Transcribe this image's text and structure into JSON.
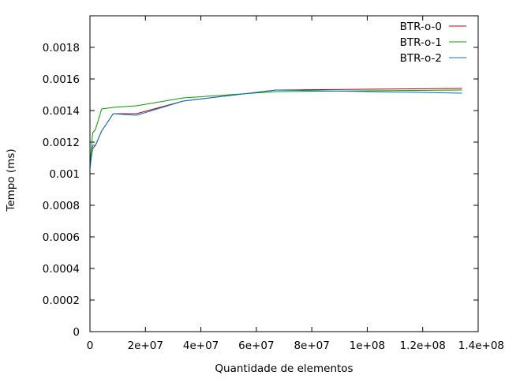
{
  "chart_data": {
    "type": "line",
    "title": "",
    "xlabel": "Quantidade de elementos",
    "ylabel": "Tempo (ms)",
    "xlim": [
      0,
      140000000
    ],
    "ylim": [
      0,
      0.002
    ],
    "grid": false,
    "legend_position": "top-right",
    "x_ticks": [
      {
        "value": 0,
        "label": "0"
      },
      {
        "value": 20000000,
        "label": "2e+07"
      },
      {
        "value": 40000000,
        "label": "4e+07"
      },
      {
        "value": 60000000,
        "label": "6e+07"
      },
      {
        "value": 80000000,
        "label": "8e+07"
      },
      {
        "value": 100000000,
        "label": "1e+08"
      },
      {
        "value": 120000000,
        "label": "1.2e+08"
      },
      {
        "value": 140000000,
        "label": "1.4e+08"
      }
    ],
    "y_ticks": [
      {
        "value": 0,
        "label": "0"
      },
      {
        "value": 0.0002,
        "label": "0.0002"
      },
      {
        "value": 0.0004,
        "label": "0.0004"
      },
      {
        "value": 0.0006,
        "label": "0.0006"
      },
      {
        "value": 0.0008,
        "label": "0.0008"
      },
      {
        "value": 0.001,
        "label": "0.001"
      },
      {
        "value": 0.0012,
        "label": "0.0012"
      },
      {
        "value": 0.0014,
        "label": "0.0014"
      },
      {
        "value": 0.0016,
        "label": "0.0016"
      },
      {
        "value": 0.0018,
        "label": "0.0018"
      }
    ],
    "series": [
      {
        "name": "BTR-o-0",
        "color": "#c00000",
        "x": [
          0,
          1000000,
          2000000,
          4200000,
          8400000,
          16800000,
          33600000,
          67100000,
          134200000
        ],
        "y": [
          0.00105,
          0.00116,
          0.00118,
          0.00127,
          0.00138,
          0.00138,
          0.00146,
          0.00153,
          0.00154
        ]
      },
      {
        "name": "BTR-o-1",
        "color": "#00a000",
        "x": [
          0,
          1000000,
          2000000,
          4200000,
          8400000,
          16800000,
          33600000,
          67100000,
          134200000
        ],
        "y": [
          0.00106,
          0.00126,
          0.00128,
          0.00141,
          0.00142,
          0.00143,
          0.00148,
          0.00152,
          0.00153
        ]
      },
      {
        "name": "BTR-o-2",
        "color": "#0070d0",
        "x": [
          0,
          1000000,
          2000000,
          4200000,
          8400000,
          16800000,
          33600000,
          67100000,
          134200000
        ],
        "y": [
          0.00103,
          0.00118,
          0.00118,
          0.00127,
          0.00138,
          0.00137,
          0.00146,
          0.00153,
          0.00151
        ]
      }
    ]
  }
}
